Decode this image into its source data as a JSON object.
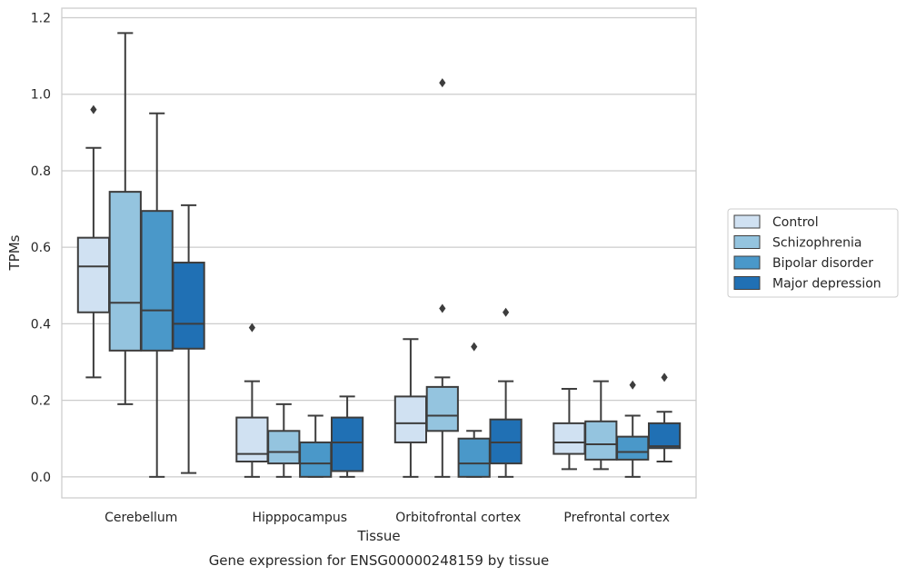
{
  "chart_data": {
    "type": "box",
    "title": "",
    "caption": "Gene expression for ENSG00000248159 by tissue",
    "xlabel": "Tissue",
    "ylabel": "TPMs",
    "ylim": [
      -0.055,
      1.225
    ],
    "yticks": [
      0.0,
      0.2,
      0.4,
      0.6,
      0.8,
      1.0,
      1.2
    ],
    "ytick_labels": [
      "0.0",
      "0.2",
      "0.4",
      "0.6",
      "0.8",
      "1.0",
      "1.2"
    ],
    "grid": "horizontal",
    "legend_position": "right",
    "categories": [
      "Cerebellum",
      "Hipppocampus",
      "Orbitofrontal cortex",
      "Prefrontal cortex"
    ],
    "series": [
      {
        "name": "Control",
        "color": "#d0e1f2",
        "boxes": [
          {
            "whisker_low": 0.26,
            "q1": 0.43,
            "median": 0.55,
            "q3": 0.625,
            "whisker_high": 0.86,
            "outliers": [
              0.96
            ]
          },
          {
            "whisker_low": 0.0,
            "q1": 0.04,
            "median": 0.06,
            "q3": 0.155,
            "whisker_high": 0.25,
            "outliers": [
              0.39
            ]
          },
          {
            "whisker_low": 0.0,
            "q1": 0.09,
            "median": 0.14,
            "q3": 0.21,
            "whisker_high": 0.36,
            "outliers": []
          },
          {
            "whisker_low": 0.02,
            "q1": 0.06,
            "median": 0.09,
            "q3": 0.14,
            "whisker_high": 0.23,
            "outliers": []
          }
        ]
      },
      {
        "name": "Schizophrenia",
        "color": "#94c4df",
        "boxes": [
          {
            "whisker_low": 0.19,
            "q1": 0.33,
            "median": 0.455,
            "q3": 0.745,
            "whisker_high": 1.16,
            "outliers": []
          },
          {
            "whisker_low": 0.0,
            "q1": 0.035,
            "median": 0.065,
            "q3": 0.12,
            "whisker_high": 0.19,
            "outliers": []
          },
          {
            "whisker_low": 0.0,
            "q1": 0.12,
            "median": 0.16,
            "q3": 0.235,
            "whisker_high": 0.26,
            "outliers": [
              0.44,
              1.03
            ]
          },
          {
            "whisker_low": 0.02,
            "q1": 0.045,
            "median": 0.085,
            "q3": 0.145,
            "whisker_high": 0.25,
            "outliers": []
          }
        ]
      },
      {
        "name": "Bipolar disorder",
        "color": "#4a98c9",
        "boxes": [
          {
            "whisker_low": 0.0,
            "q1": 0.33,
            "median": 0.435,
            "q3": 0.695,
            "whisker_high": 0.95,
            "outliers": []
          },
          {
            "whisker_low": 0.0,
            "q1": 0.0,
            "median": 0.035,
            "q3": 0.09,
            "whisker_high": 0.16,
            "outliers": []
          },
          {
            "whisker_low": 0.0,
            "q1": 0.0,
            "median": 0.035,
            "q3": 0.1,
            "whisker_high": 0.12,
            "outliers": [
              0.34
            ]
          },
          {
            "whisker_low": 0.0,
            "q1": 0.045,
            "median": 0.065,
            "q3": 0.105,
            "whisker_high": 0.16,
            "outliers": [
              0.24
            ]
          }
        ]
      },
      {
        "name": "Major depression",
        "color": "#2070b4",
        "boxes": [
          {
            "whisker_low": 0.01,
            "q1": 0.335,
            "median": 0.4,
            "q3": 0.56,
            "whisker_high": 0.71,
            "outliers": []
          },
          {
            "whisker_low": 0.0,
            "q1": 0.015,
            "median": 0.09,
            "q3": 0.155,
            "whisker_high": 0.21,
            "outliers": []
          },
          {
            "whisker_low": 0.0,
            "q1": 0.035,
            "median": 0.09,
            "q3": 0.15,
            "whisker_high": 0.25,
            "outliers": [
              0.43
            ]
          },
          {
            "whisker_low": 0.04,
            "q1": 0.075,
            "median": 0.08,
            "q3": 0.14,
            "whisker_high": 0.17,
            "outliers": [
              0.26
            ]
          }
        ]
      }
    ]
  }
}
